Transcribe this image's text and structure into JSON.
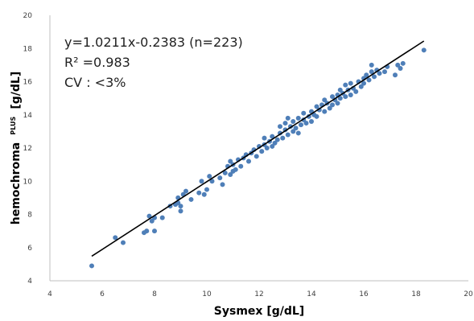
{
  "chart_data": {
    "type": "scatter",
    "title": "",
    "xlabel": "Sysmex [g/dL]",
    "ylabel_main": "hemochroma",
    "ylabel_sup": "PLUS",
    "ylabel_unit": "[g/dL]",
    "xlim": [
      4,
      20
    ],
    "ylim": [
      4,
      20
    ],
    "xticks": [
      4,
      6,
      8,
      10,
      12,
      14,
      16,
      18,
      20
    ],
    "yticks": [
      4,
      6,
      8,
      10,
      12,
      14,
      16,
      18,
      20
    ],
    "grid": false,
    "legend": "none",
    "annotations": [
      "y=1.0211x-0.2383 (n=223)",
      "R² =0.983",
      "CV : <3%"
    ],
    "point_color": "#4f7fb8",
    "trendline": {
      "slope": 1.0211,
      "intercept": -0.2383,
      "x_range": [
        5.6,
        18.3
      ],
      "color": "#000000"
    },
    "series": [
      {
        "points": [
          [
            5.6,
            4.9
          ],
          [
            6.5,
            6.6
          ],
          [
            6.8,
            6.3
          ],
          [
            7.6,
            6.9
          ],
          [
            7.7,
            7.0
          ],
          [
            7.8,
            7.9
          ],
          [
            7.9,
            7.6
          ],
          [
            8.0,
            7.0
          ],
          [
            8.0,
            7.8
          ],
          [
            8.3,
            7.8
          ],
          [
            8.6,
            8.5
          ],
          [
            8.8,
            8.6
          ],
          [
            8.9,
            8.7
          ],
          [
            8.9,
            9.0
          ],
          [
            9.0,
            8.2
          ],
          [
            9.0,
            8.5
          ],
          [
            9.1,
            9.2
          ],
          [
            9.2,
            9.4
          ],
          [
            9.4,
            8.9
          ],
          [
            9.7,
            9.3
          ],
          [
            9.8,
            10.0
          ],
          [
            9.9,
            9.2
          ],
          [
            10.0,
            9.5
          ],
          [
            10.1,
            10.3
          ],
          [
            10.2,
            10.0
          ],
          [
            10.5,
            10.2
          ],
          [
            10.6,
            9.8
          ],
          [
            10.7,
            10.5
          ],
          [
            10.8,
            10.9
          ],
          [
            10.9,
            10.4
          ],
          [
            10.9,
            11.2
          ],
          [
            11.0,
            10.6
          ],
          [
            11.0,
            11.0
          ],
          [
            11.1,
            10.7
          ],
          [
            11.2,
            11.3
          ],
          [
            11.3,
            10.9
          ],
          [
            11.4,
            11.4
          ],
          [
            11.5,
            11.6
          ],
          [
            11.6,
            11.2
          ],
          [
            11.7,
            11.7
          ],
          [
            11.8,
            11.9
          ],
          [
            11.9,
            11.5
          ],
          [
            12.0,
            12.1
          ],
          [
            12.1,
            11.8
          ],
          [
            12.2,
            12.2
          ],
          [
            12.2,
            12.6
          ],
          [
            12.3,
            12.0
          ],
          [
            12.4,
            12.4
          ],
          [
            12.5,
            12.1
          ],
          [
            12.5,
            12.7
          ],
          [
            12.6,
            12.3
          ],
          [
            12.7,
            12.5
          ],
          [
            12.8,
            12.9
          ],
          [
            12.8,
            13.3
          ],
          [
            12.9,
            12.6
          ],
          [
            13.0,
            13.1
          ],
          [
            13.0,
            13.5
          ],
          [
            13.1,
            12.8
          ],
          [
            13.1,
            13.8
          ],
          [
            13.2,
            13.3
          ],
          [
            13.3,
            13.0
          ],
          [
            13.3,
            13.6
          ],
          [
            13.4,
            13.2
          ],
          [
            13.5,
            13.8
          ],
          [
            13.5,
            12.9
          ],
          [
            13.6,
            13.4
          ],
          [
            13.7,
            13.7
          ],
          [
            13.7,
            14.1
          ],
          [
            13.8,
            13.5
          ],
          [
            13.9,
            13.9
          ],
          [
            14.0,
            13.6
          ],
          [
            14.0,
            14.2
          ],
          [
            14.1,
            14.0
          ],
          [
            14.2,
            14.5
          ],
          [
            14.2,
            13.9
          ],
          [
            14.3,
            14.3
          ],
          [
            14.4,
            14.6
          ],
          [
            14.5,
            14.2
          ],
          [
            14.5,
            14.9
          ],
          [
            14.6,
            14.7
          ],
          [
            14.7,
            14.4
          ],
          [
            14.8,
            15.1
          ],
          [
            14.8,
            14.6
          ],
          [
            14.9,
            14.9
          ],
          [
            15.0,
            15.2
          ],
          [
            15.0,
            14.7
          ],
          [
            15.1,
            15.0
          ],
          [
            15.1,
            15.5
          ],
          [
            15.2,
            15.3
          ],
          [
            15.3,
            15.1
          ],
          [
            15.3,
            15.8
          ],
          [
            15.4,
            15.5
          ],
          [
            15.5,
            15.2
          ],
          [
            15.5,
            15.9
          ],
          [
            15.6,
            15.6
          ],
          [
            15.7,
            15.4
          ],
          [
            15.8,
            16.0
          ],
          [
            15.9,
            15.7
          ],
          [
            16.0,
            16.2
          ],
          [
            16.0,
            15.9
          ],
          [
            16.1,
            16.4
          ],
          [
            16.2,
            16.1
          ],
          [
            16.3,
            16.6
          ],
          [
            16.3,
            17.0
          ],
          [
            16.4,
            16.3
          ],
          [
            16.5,
            16.7
          ],
          [
            16.6,
            16.5
          ],
          [
            16.8,
            16.6
          ],
          [
            16.9,
            16.9
          ],
          [
            17.2,
            16.4
          ],
          [
            17.3,
            17.0
          ],
          [
            17.4,
            16.8
          ],
          [
            17.5,
            17.1
          ],
          [
            18.3,
            17.9
          ]
        ]
      }
    ]
  }
}
